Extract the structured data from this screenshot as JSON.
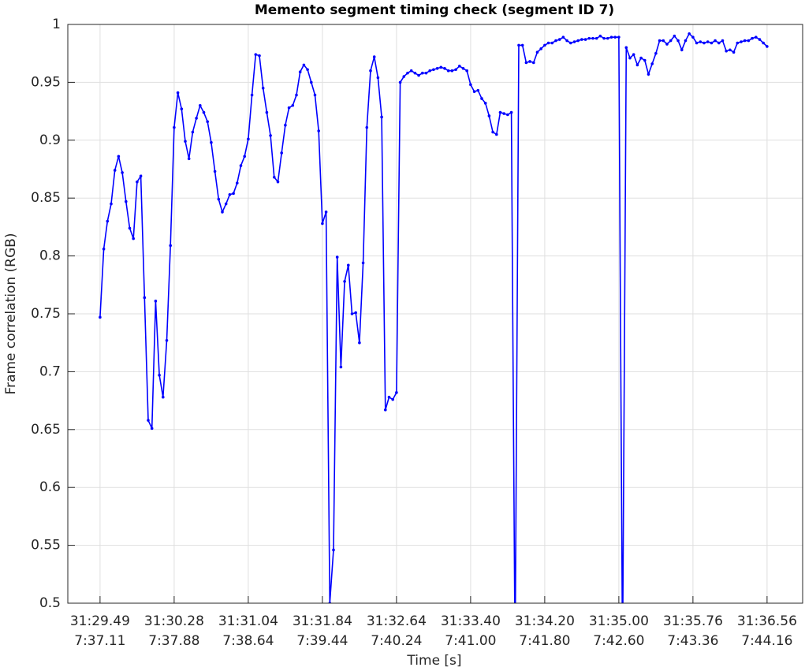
{
  "chart_data": {
    "type": "line",
    "title": "Memento segment timing check (segment ID 7)",
    "xlabel": "Time [s]",
    "ylabel": "Frame correlation (RGB)",
    "color": "#0000ff",
    "grid": true,
    "markers": true,
    "x": [
      0,
      1,
      2,
      3,
      4,
      5,
      6,
      7,
      8,
      9,
      10,
      11,
      12,
      13,
      14,
      15,
      16,
      17,
      18,
      19,
      20,
      21,
      22,
      23,
      24,
      25,
      26,
      27,
      28,
      29,
      30,
      31,
      32,
      33,
      34,
      35,
      36,
      37,
      38,
      39,
      40,
      41,
      42,
      43,
      44,
      45,
      46,
      47,
      48,
      49,
      50,
      51,
      52,
      53,
      54,
      55,
      56,
      57,
      58,
      59,
      60,
      61,
      62,
      63,
      64,
      65,
      66,
      67,
      68,
      69,
      70,
      71,
      72,
      73,
      74,
      75,
      76,
      77,
      78,
      79,
      80,
      81,
      82,
      83,
      84,
      85,
      86,
      87,
      88,
      89,
      90,
      91,
      92,
      93,
      94,
      95,
      96,
      97,
      98,
      99,
      100,
      101,
      102,
      103,
      104,
      105,
      106,
      107,
      108,
      109,
      110,
      111,
      112,
      113,
      114,
      115,
      116,
      117,
      118,
      119,
      120,
      121,
      122,
      123,
      124,
      125,
      126,
      127,
      128,
      129,
      130,
      131,
      132,
      133,
      134,
      135,
      136,
      137,
      138,
      139,
      140,
      141,
      142,
      143,
      144,
      145,
      146,
      147,
      148,
      149,
      150,
      151,
      152,
      153,
      154,
      155,
      156,
      157,
      158,
      159,
      160,
      161,
      162,
      163,
      164,
      165,
      166,
      167,
      168,
      169,
      170,
      171,
      172,
      173,
      174,
      175,
      176,
      177,
      178,
      179,
      180
    ],
    "values": [
      0.747,
      0.806,
      0.83,
      0.845,
      0.874,
      0.886,
      0.872,
      0.847,
      0.824,
      0.815,
      0.864,
      0.869,
      0.764,
      0.658,
      0.651,
      0.761,
      0.697,
      0.678,
      0.727,
      0.809,
      0.911,
      0.941,
      0.927,
      0.899,
      0.884,
      0.907,
      0.919,
      0.93,
      0.924,
      0.916,
      0.898,
      0.873,
      0.849,
      0.838,
      0.845,
      0.853,
      0.854,
      0.863,
      0.878,
      0.886,
      0.901,
      0.939,
      0.974,
      0.973,
      0.945,
      0.924,
      0.904,
      0.868,
      0.864,
      0.889,
      0.913,
      0.928,
      0.93,
      0.939,
      0.959,
      0.965,
      0.961,
      0.95,
      0.939,
      0.908,
      0.828,
      0.838,
      0.5,
      0.546,
      0.799,
      0.704,
      0.778,
      0.792,
      0.75,
      0.751,
      0.725,
      0.794,
      0.911,
      0.96,
      0.972,
      0.954,
      0.92,
      0.667,
      0.678,
      0.676,
      0.682,
      0.95,
      0.955,
      0.958,
      0.96,
      0.958,
      0.956,
      0.958,
      0.958,
      0.96,
      0.961,
      0.962,
      0.963,
      0.962,
      0.96,
      0.96,
      0.961,
      0.964,
      0.962,
      0.96,
      0.948,
      0.942,
      0.943,
      0.936,
      0.932,
      0.921,
      0.907,
      0.905,
      0.924,
      0.923,
      0.922,
      0.924,
      0.45,
      0.982,
      0.982,
      0.967,
      0.968,
      0.967,
      0.976,
      0.979,
      0.982,
      0.984,
      0.984,
      0.986,
      0.987,
      0.989,
      0.986,
      0.984,
      0.985,
      0.986,
      0.987,
      0.987,
      0.988,
      0.988,
      0.988,
      0.99,
      0.988,
      0.988,
      0.989,
      0.989,
      0.989,
      0.45,
      0.98,
      0.971,
      0.974,
      0.965,
      0.971,
      0.969,
      0.957,
      0.966,
      0.975,
      0.986,
      0.986,
      0.983,
      0.986,
      0.99,
      0.986,
      0.978,
      0.986,
      0.992,
      0.989,
      0.984,
      0.985,
      0.984,
      0.985,
      0.984,
      0.986,
      0.984,
      0.986,
      0.977,
      0.978,
      0.976,
      0.984,
      0.985,
      0.986,
      0.986,
      0.988,
      0.989,
      0.987,
      0.984,
      0.981
    ],
    "xlim": [
      -8.7,
      189.6
    ],
    "ylim": [
      0.5,
      1
    ],
    "xticks": [
      {
        "value": 0,
        "label": [
          "31:29.49",
          "7:37.11"
        ]
      },
      {
        "value": 20,
        "label": [
          "31:30.28",
          "7:37.88"
        ]
      },
      {
        "value": 40,
        "label": [
          "31:31.04",
          "7:38.64"
        ]
      },
      {
        "value": 60,
        "label": [
          "31:31.84",
          "7:39.44"
        ]
      },
      {
        "value": 80,
        "label": [
          "31:32.64",
          "7:40.24"
        ]
      },
      {
        "value": 100,
        "label": [
          "31:33.40",
          "7:41.00"
        ]
      },
      {
        "value": 120,
        "label": [
          "31:34.20",
          "7:41.80"
        ]
      },
      {
        "value": 140,
        "label": [
          "31:35.00",
          "7:42.60"
        ]
      },
      {
        "value": 160,
        "label": [
          "31:35.76",
          "7:43.36"
        ]
      },
      {
        "value": 180,
        "label": [
          "31:36.56",
          "7:44.16"
        ]
      }
    ],
    "yticks": [
      0.5,
      0.55,
      0.6,
      0.65,
      0.7,
      0.75,
      0.8,
      0.85,
      0.9,
      0.95,
      1
    ]
  }
}
